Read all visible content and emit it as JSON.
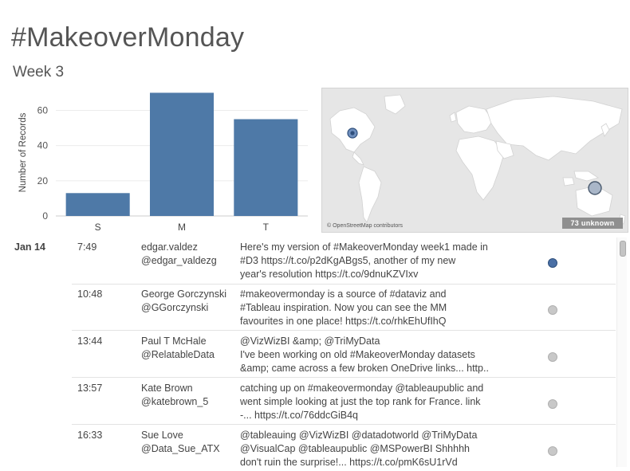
{
  "header": {
    "title": "#MakeoverMonday",
    "subtitle": "Week 3"
  },
  "chart_data": {
    "type": "bar",
    "categories": [
      "S",
      "M",
      "T"
    ],
    "values": [
      13,
      70,
      55
    ],
    "ylabel": "Number of Records",
    "xlabel": "",
    "ylim": [
      0,
      72
    ],
    "yticks": [
      0,
      20,
      40,
      60
    ],
    "bar_color": "#4e79a7",
    "grid": true
  },
  "map": {
    "attribution": "© OpenStreetMap contributors",
    "unknown_label": "73 unknown",
    "land_color": "#ffffff",
    "water_color": "#e6e6e6"
  },
  "tweets": {
    "date": "Jan 14",
    "rows": [
      {
        "time": "7:49",
        "name": "edgar.valdez",
        "handle": "@edgar_valdezg",
        "lines": [
          "Here's my version of #MakeoverMonday week1 made in",
          "#D3 https://t.co/p2dKgABgs5, another of my new",
          "year's resolution https://t.co/9dnuKZVIxv"
        ],
        "highlighted": true
      },
      {
        "time": "10:48",
        "name": "George Gorczynski",
        "handle": "@GGorczynski",
        "lines": [
          "#makeovermonday is a source of #dataviz and",
          "#Tableau inspiration. Now you can see the MM",
          "favourites in one place! https://t.co/rhkEhUfIhQ"
        ],
        "highlighted": false
      },
      {
        "time": "13:44",
        "name": "Paul T McHale",
        "handle": "@RelatableData",
        "lines": [
          "@VizWizBI &amp; @TriMyData",
          "I've been working on old #MakeoverMonday datasets",
          "&amp; came across a few broken OneDrive links... http.."
        ],
        "highlighted": false
      },
      {
        "time": "13:57",
        "name": "Kate Brown",
        "handle": "@katebrown_5",
        "lines": [
          "catching up on #makeovermonday @tableaupublic and",
          "went simple looking at just the top rank for France. link",
          "-... https://t.co/76ddcGiB4q"
        ],
        "highlighted": false
      },
      {
        "time": "16:33",
        "name": "Sue Love",
        "handle": "@Data_Sue_ATX",
        "lines": [
          "@tableauing @VizWizBI @datadotworld @TriMyData",
          "@VisualCap @tableaupublic @MSPowerBI Shhhhh",
          "don't ruin the surprise!... https://t.co/pmK6sU1rVd"
        ],
        "highlighted": false
      }
    ]
  }
}
